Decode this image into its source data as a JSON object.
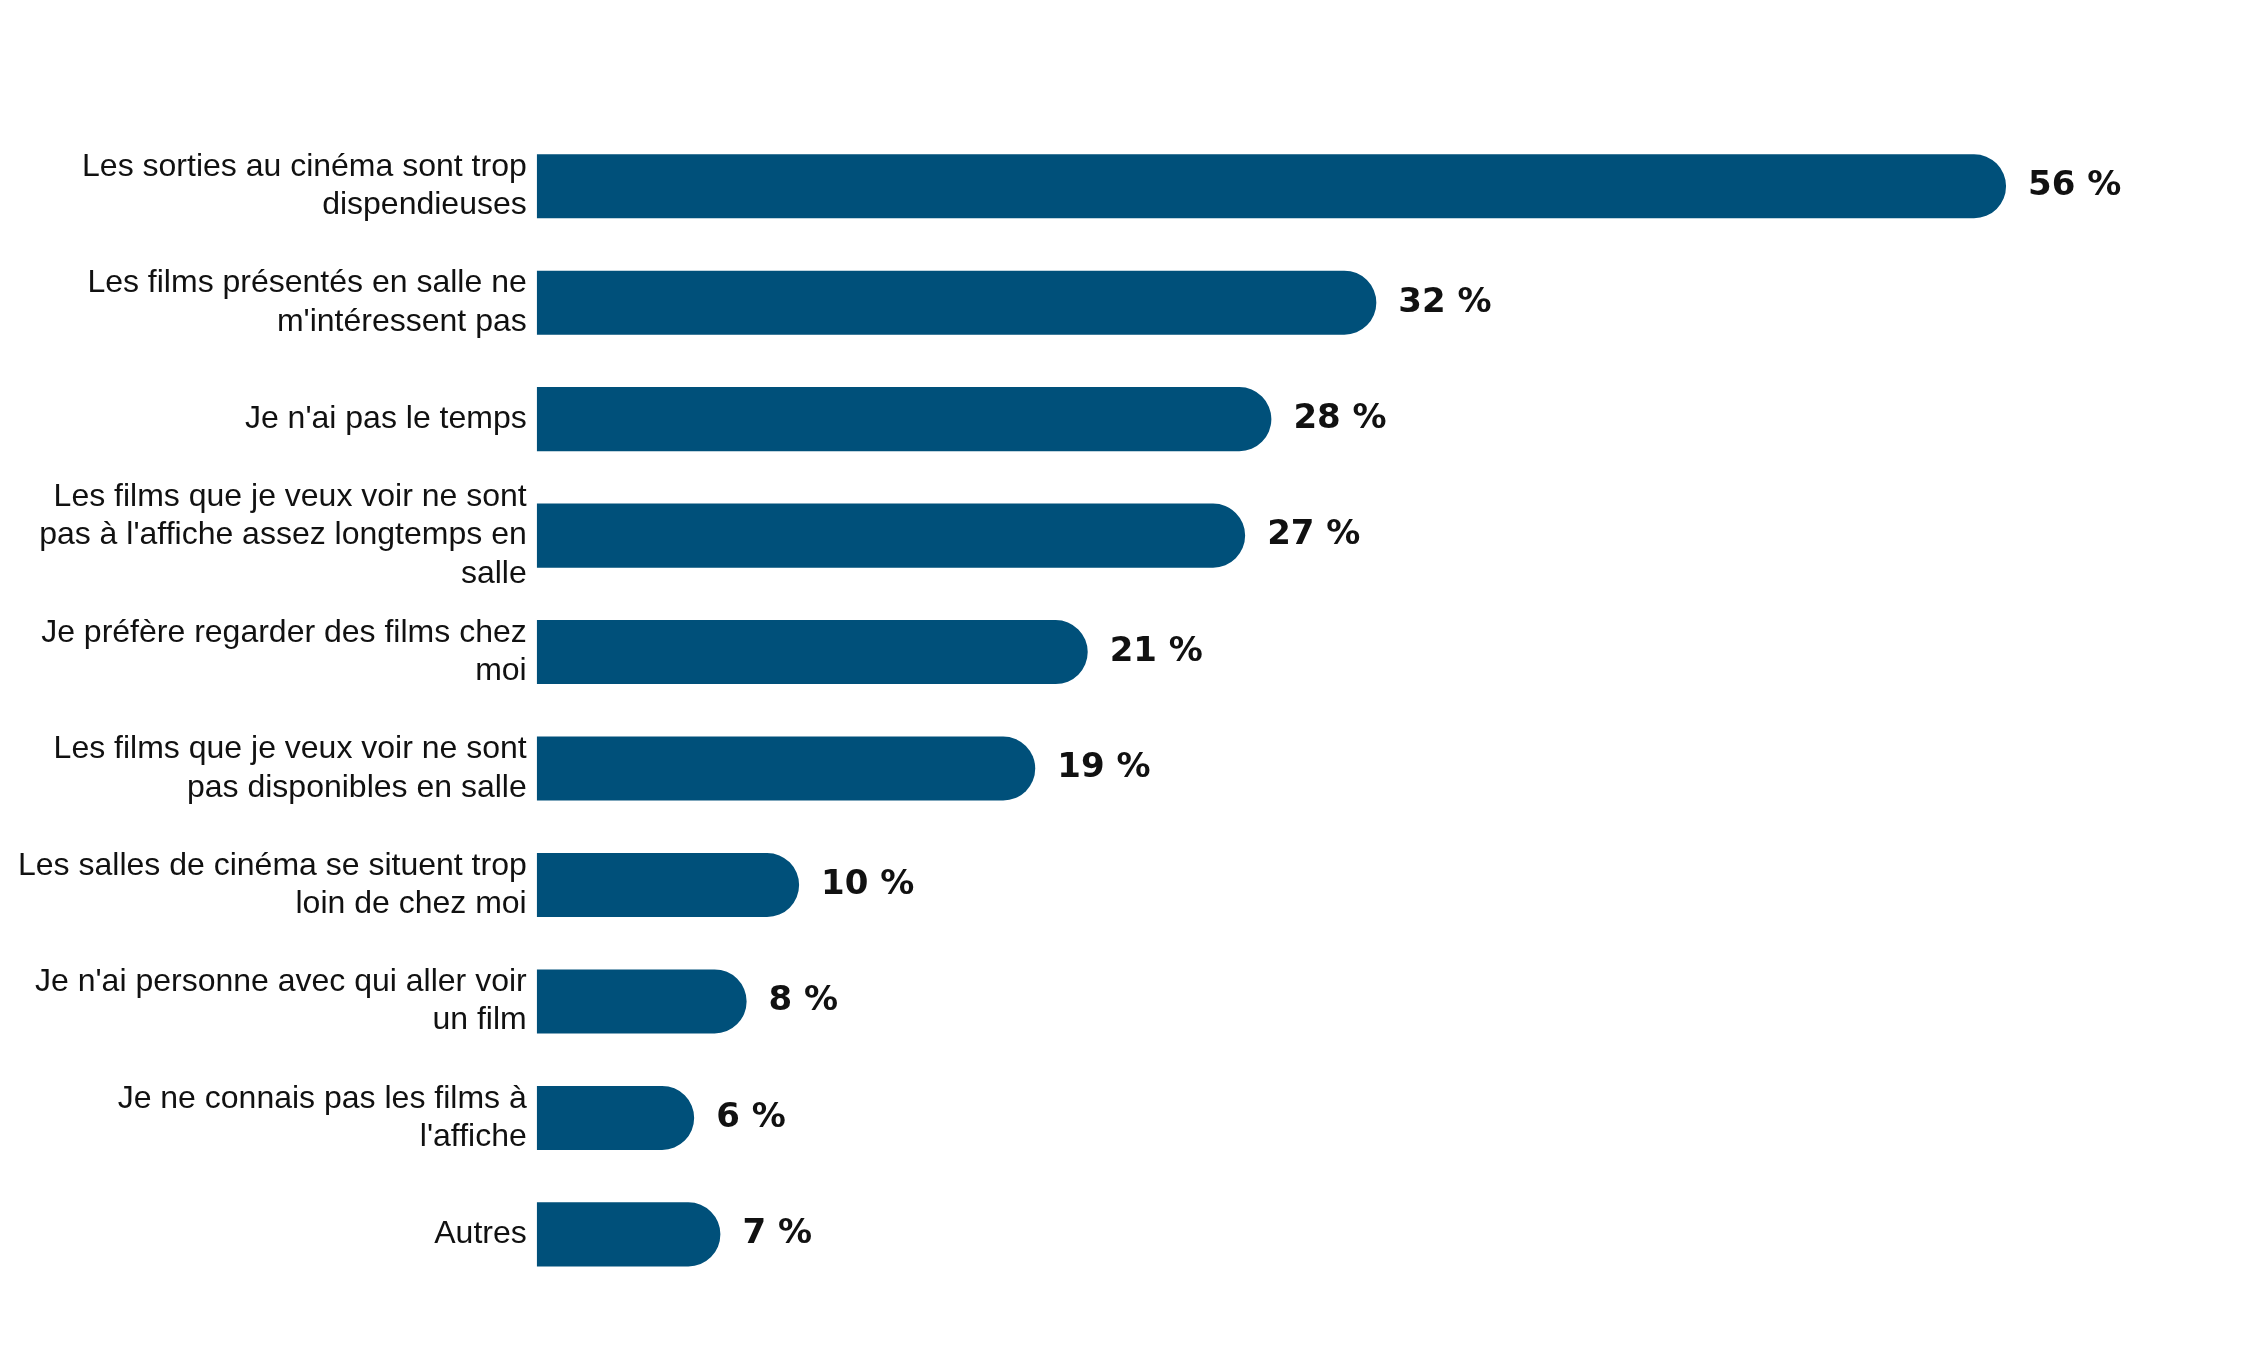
{
  "chart_data": {
    "type": "bar",
    "orientation": "horizontal",
    "categories": [
      "Les sorties au cinéma sont trop dispendieuses",
      "Les films présentés en salle ne m'intéressent pas",
      "Je n'ai pas le temps",
      "Les films que je veux voir ne sont pas à l'affiche assez longtemps en salle",
      "Je préfère regarder des films chez moi",
      "Les films que je veux voir ne sont pas disponibles en salle",
      "Les salles de cinéma se situent trop loin de chez moi",
      "Je n'ai personne avec qui aller voir un film",
      "Je ne connais pas les films à l'affiche",
      "Autres"
    ],
    "values": [
      56,
      32,
      28,
      27,
      21,
      19,
      10,
      8,
      6,
      7
    ],
    "value_labels": [
      "56 %",
      "32 %",
      "28 %",
      "27 %",
      "21 %",
      "19 %",
      "10 %",
      "8 %",
      "6 %",
      "7 %"
    ],
    "color": "#00507a",
    "tick_labels": "y",
    "grid": false,
    "legend": false
  }
}
